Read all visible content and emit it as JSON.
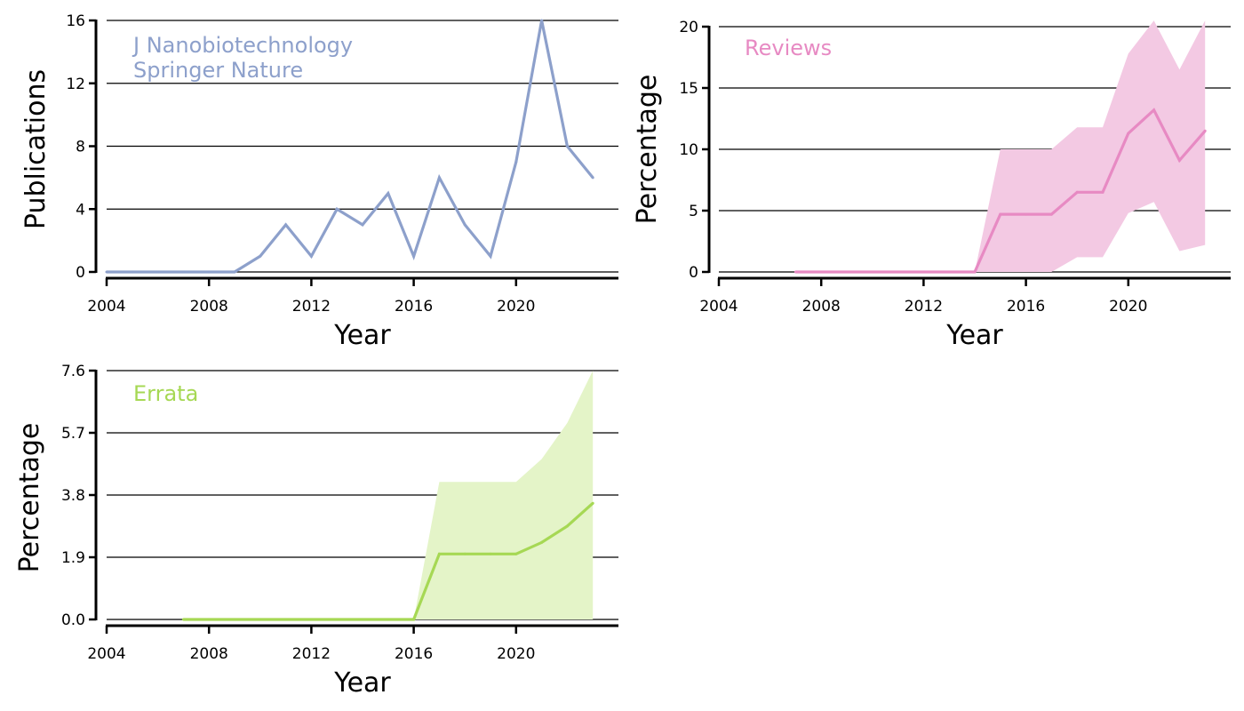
{
  "chart_data": [
    {
      "id": "pubs",
      "type": "line",
      "xlabel": "Year",
      "ylabel": "Publications",
      "annotation": [
        "J Nanobiotechnology",
        "Springer Nature"
      ],
      "xlim": [
        2004,
        2024
      ],
      "ylim": [
        0,
        16
      ],
      "xticks": [
        "2004",
        "2008",
        "2012",
        "2016",
        "2020"
      ],
      "yticks": [
        "0",
        "4",
        "8",
        "12",
        "16"
      ],
      "color": "#8da0cb",
      "x": [
        2004,
        2005,
        2006,
        2007,
        2008,
        2009,
        2010,
        2011,
        2012,
        2013,
        2014,
        2015,
        2016,
        2017,
        2018,
        2019,
        2020,
        2021,
        2022,
        2023
      ],
      "y": [
        0,
        0,
        0,
        0,
        0,
        0,
        1,
        3,
        1,
        4,
        3,
        5,
        1,
        6,
        3,
        1,
        7,
        16,
        8,
        6
      ]
    },
    {
      "id": "reviews",
      "type": "area",
      "xlabel": "Year",
      "ylabel": "Percentage",
      "annotation": [
        "Reviews"
      ],
      "xlim": [
        2004,
        2024
      ],
      "ylim": [
        0,
        20
      ],
      "xticks": [
        "2004",
        "2008",
        "2012",
        "2016",
        "2020"
      ],
      "yticks": [
        "0",
        "5",
        "10",
        "15",
        "20"
      ],
      "color": "#e78ac3",
      "fill": "#f3c9e3",
      "x": [
        2007,
        2008,
        2009,
        2010,
        2011,
        2012,
        2013,
        2014,
        2015,
        2016,
        2017,
        2018,
        2019,
        2020,
        2021,
        2022,
        2023
      ],
      "y": [
        0,
        0,
        0,
        0,
        0,
        0,
        0,
        0,
        4.7,
        4.7,
        4.7,
        6.5,
        6.5,
        11.3,
        13.2,
        9.1,
        11.5
      ],
      "lower": [
        0,
        0,
        0,
        0,
        0,
        0,
        0,
        0,
        0,
        0,
        0,
        1.2,
        1.2,
        4.8,
        5.7,
        1.7,
        2.2
      ],
      "upper": [
        0,
        0,
        0,
        0,
        0,
        0,
        0,
        0,
        10,
        10,
        10,
        11.8,
        11.8,
        17.8,
        20.5,
        16.5,
        20.5
      ]
    },
    {
      "id": "errata",
      "type": "area",
      "xlabel": "Year",
      "ylabel": "Percentage",
      "annotation": [
        "Errata"
      ],
      "xlim": [
        2004,
        2024
      ],
      "ylim": [
        0,
        7.6
      ],
      "xticks": [
        "2004",
        "2008",
        "2012",
        "2016",
        "2020"
      ],
      "yticks": [
        "0.0",
        "1.9",
        "3.8",
        "5.7",
        "7.6"
      ],
      "color": "#a6d854",
      "fill": "#e4f4c8",
      "x": [
        2007,
        2008,
        2009,
        2010,
        2011,
        2012,
        2013,
        2014,
        2015,
        2016,
        2017,
        2018,
        2019,
        2020,
        2021,
        2022,
        2023
      ],
      "y": [
        0,
        0,
        0,
        0,
        0,
        0,
        0,
        0,
        0,
        0,
        2.0,
        2.0,
        2.0,
        2.0,
        2.35,
        2.85,
        3.55
      ],
      "lower": [
        0,
        0,
        0,
        0,
        0,
        0,
        0,
        0,
        0,
        0,
        0,
        0,
        0,
        0,
        0,
        0,
        0
      ],
      "upper": [
        0,
        0,
        0,
        0,
        0,
        0,
        0,
        0,
        0,
        0,
        4.2,
        4.2,
        4.2,
        4.2,
        4.9,
        6.0,
        7.6
      ]
    }
  ]
}
